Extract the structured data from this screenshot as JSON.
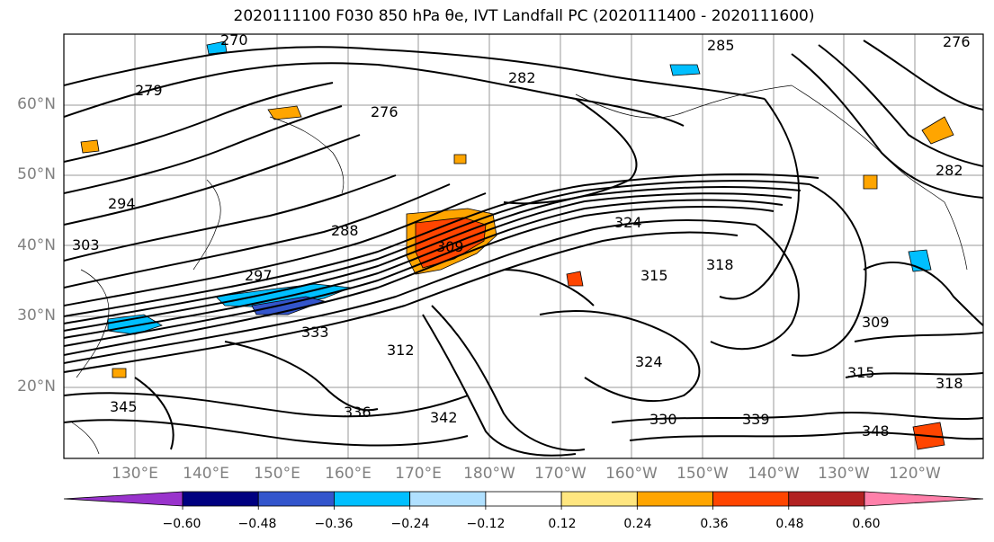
{
  "title": "2020111100 F030 850 hPa θe, IVT Landfall PC (2020111400 - 2020111600)",
  "lat_labels": [
    "60°N",
    "50°N",
    "40°N",
    "30°N",
    "20°N"
  ],
  "lon_labels": [
    "130°E",
    "140°E",
    "150°E",
    "160°E",
    "170°E",
    "180°W",
    "170°W",
    "160°W",
    "150°W",
    "140°W",
    "130°W",
    "120°W"
  ],
  "colorbar": {
    "colors": [
      "#9933cc",
      "#000080",
      "#3355cc",
      "#00bfff",
      "#b0e0ff",
      "#ffffff",
      "#ffe680",
      "#ffa500",
      "#ff4500",
      "#b22222",
      "#ff80aa"
    ],
    "tick_labels": [
      "−0.60",
      "−0.48",
      "−0.36",
      "−0.24",
      "−0.12",
      "0.12",
      "0.24",
      "0.36",
      "0.48",
      "0.60"
    ],
    "extend": "both"
  },
  "contour_labels": [
    "270",
    "279",
    "276",
    "276",
    "282",
    "285",
    "288",
    "294",
    "297",
    "303",
    "309",
    "312",
    "315",
    "318",
    "324",
    "324",
    "330",
    "333",
    "336",
    "339",
    "342",
    "345",
    "348",
    "309",
    "315",
    "318",
    "282"
  ]
}
